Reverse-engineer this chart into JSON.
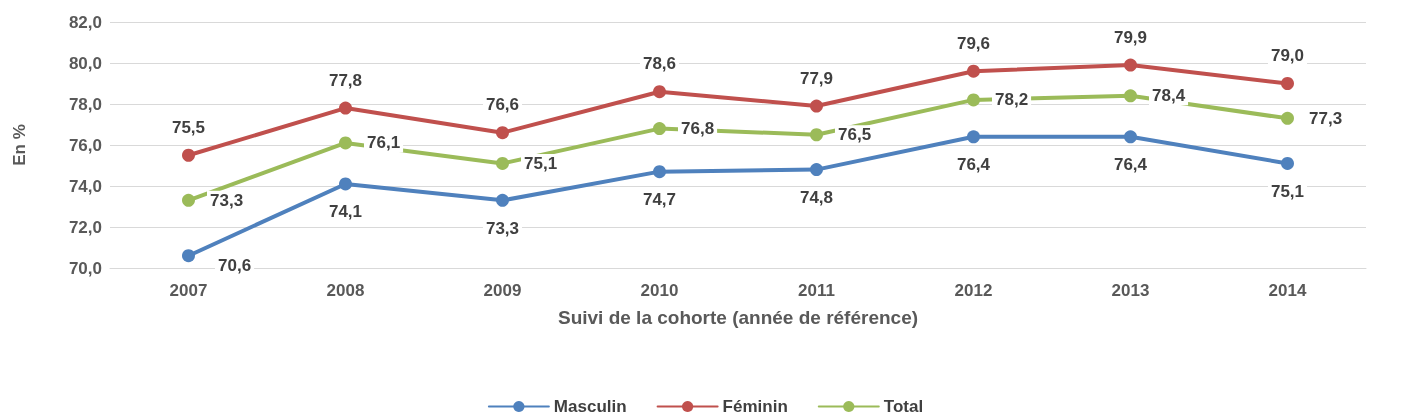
{
  "chart_data": {
    "type": "line",
    "xlabel": "Suivi de la cohorte (année de référence)",
    "ylabel": "En %",
    "categories": [
      "2007",
      "2008",
      "2009",
      "2010",
      "2011",
      "2012",
      "2013",
      "2014"
    ],
    "series": [
      {
        "name": "Masculin",
        "color": "#4f81bd",
        "values": [
          70.6,
          74.1,
          73.3,
          74.7,
          74.8,
          76.4,
          76.4,
          75.1
        ],
        "value_labels": [
          "70,6",
          "74,1",
          "73,3",
          "74,7",
          "74,8",
          "76,4",
          "76,4",
          "75,1"
        ]
      },
      {
        "name": "Féminin",
        "color": "#c0504d",
        "values": [
          75.5,
          77.8,
          76.6,
          78.6,
          77.9,
          79.6,
          79.9,
          79.0
        ],
        "value_labels": [
          "75,5",
          "77,8",
          "76,6",
          "78,6",
          "77,9",
          "79,6",
          "79,9",
          "79,0"
        ]
      },
      {
        "name": "Total",
        "color": "#9bbb59",
        "values": [
          73.3,
          76.1,
          75.1,
          76.8,
          76.5,
          78.2,
          78.4,
          77.3
        ],
        "value_labels": [
          "73,3",
          "76,1",
          "75,1",
          "76,8",
          "76,5",
          "78,2",
          "78,4",
          "77,3"
        ]
      }
    ],
    "ylim": [
      70,
      82
    ],
    "yticks": [
      {
        "value": 70,
        "label": "70,0"
      },
      {
        "value": 72,
        "label": "72,0"
      },
      {
        "value": 74,
        "label": "74,0"
      },
      {
        "value": 76,
        "label": "76,0"
      },
      {
        "value": 78,
        "label": "78,0"
      },
      {
        "value": 80,
        "label": "80,0"
      },
      {
        "value": 82,
        "label": "82,0"
      }
    ],
    "grid": "y",
    "legend": "bottom",
    "marker": "circle",
    "line_style": "solid"
  }
}
